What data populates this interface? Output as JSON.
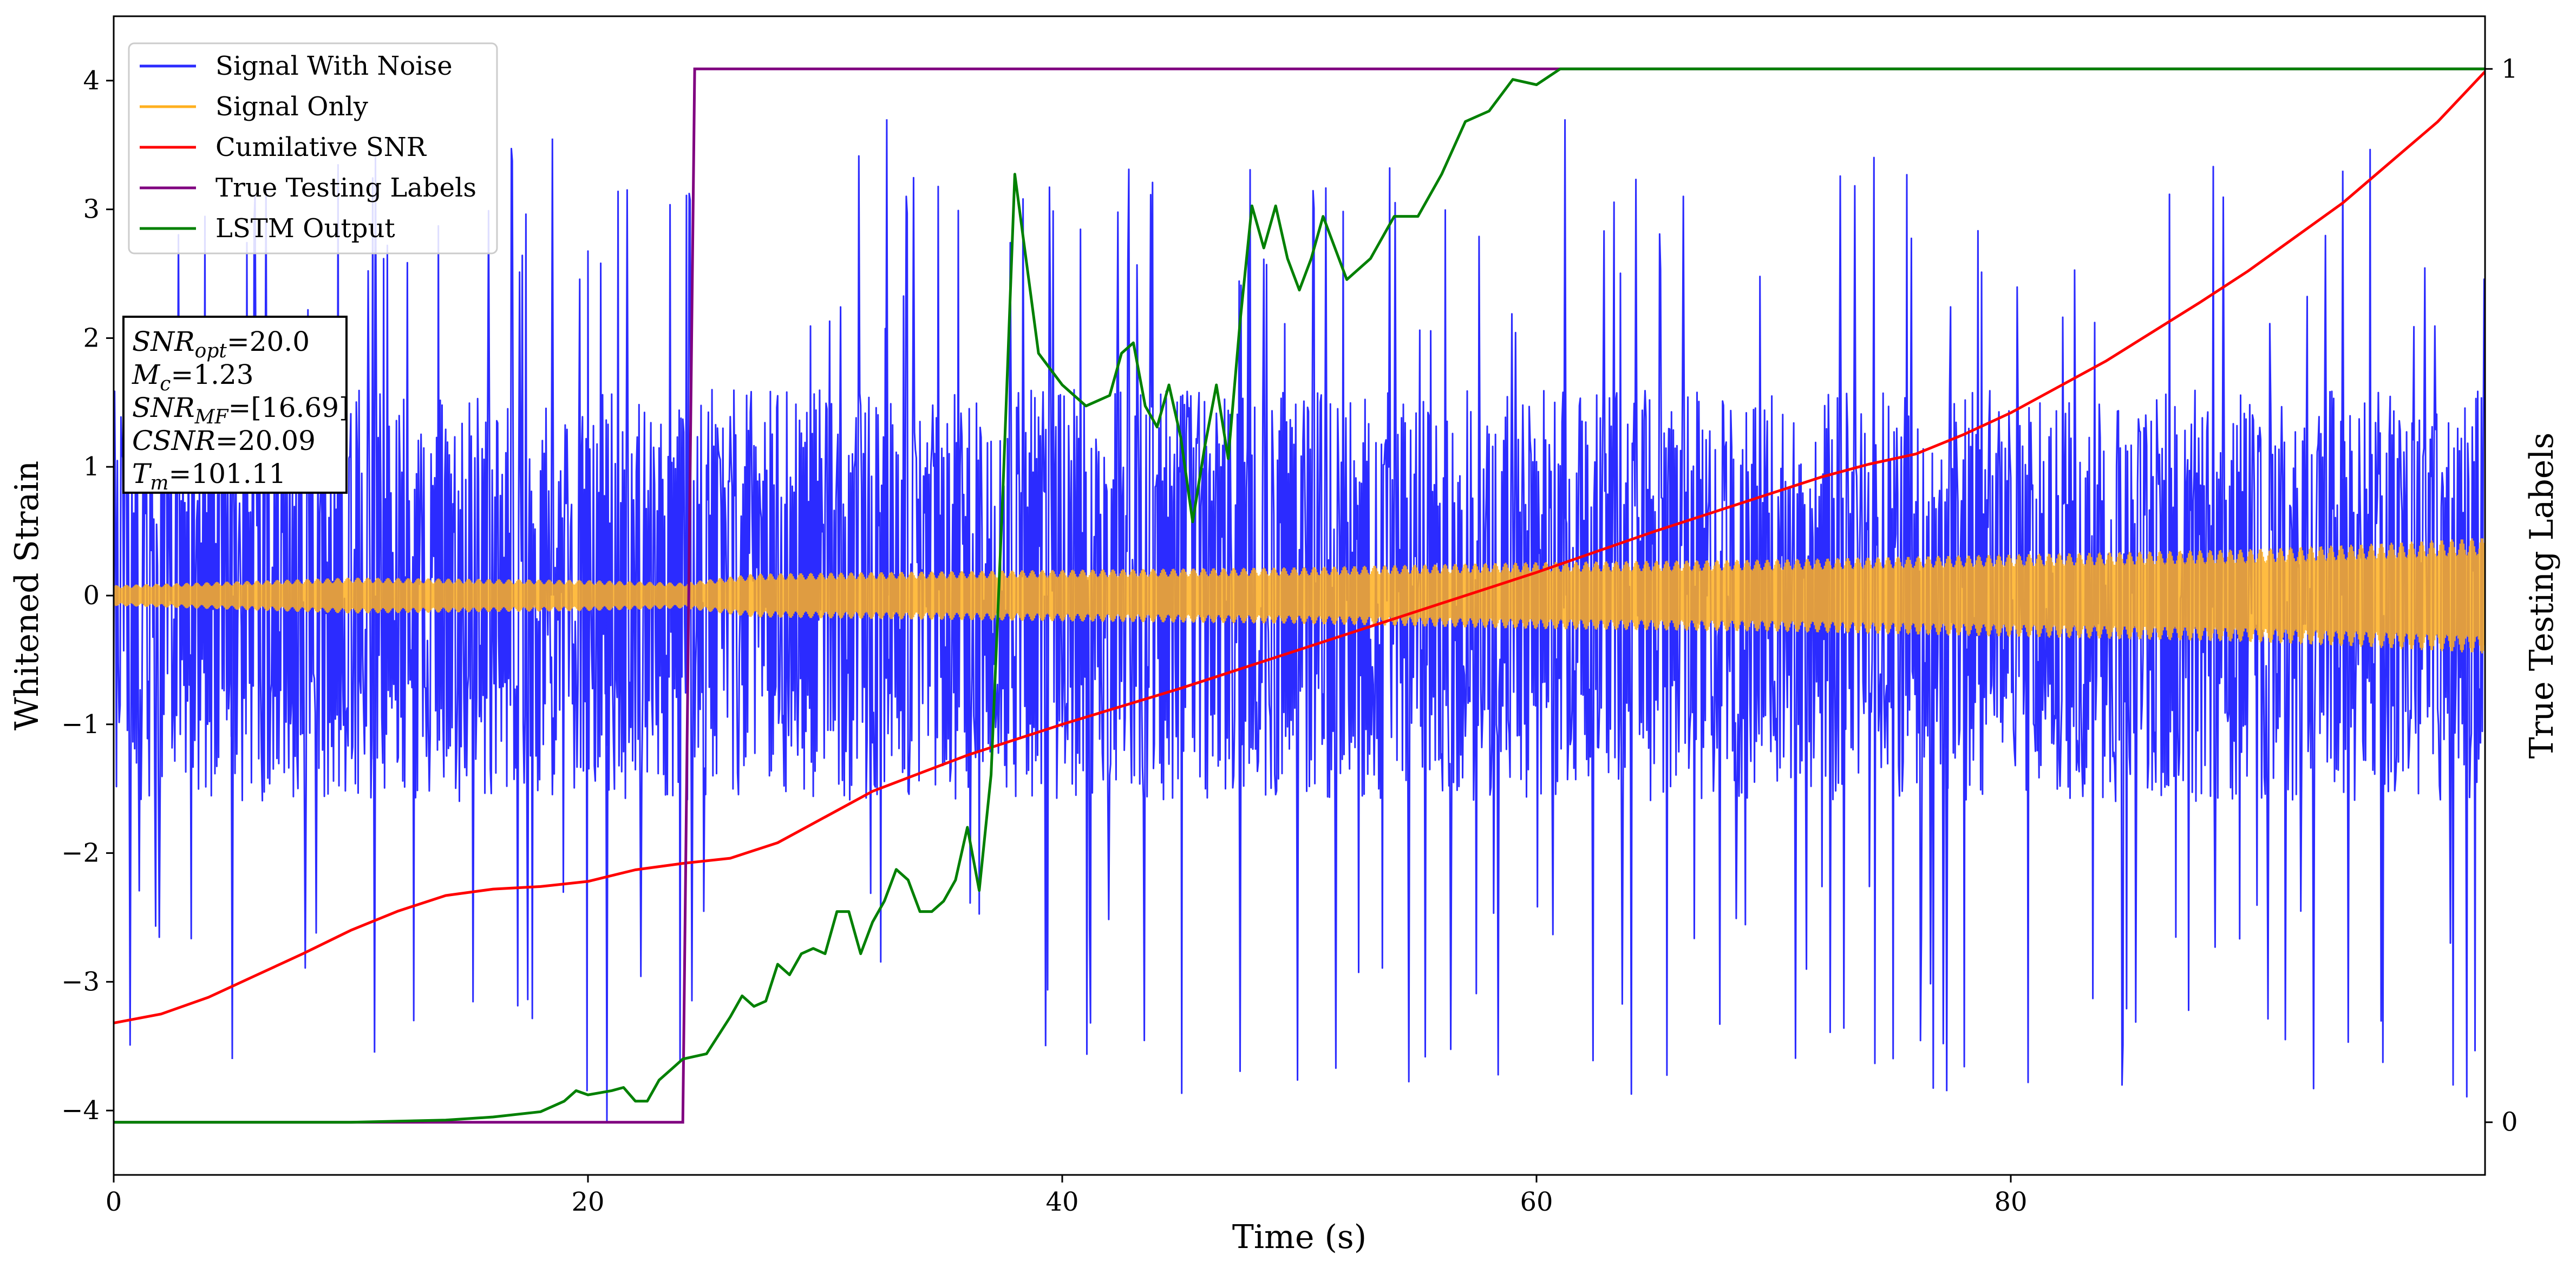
{
  "chart_data": {
    "type": "line",
    "xlabel": "Time (s)",
    "ylabel": "Whitened Strain",
    "ylabel_right": "True Testing Labels",
    "xlim": [
      0,
      100
    ],
    "ylim": [
      -4.5,
      4.5
    ],
    "ylim_right": [
      -0.05,
      1.05
    ],
    "x_ticks": [
      0,
      20,
      40,
      60,
      80
    ],
    "y_ticks": [
      -4,
      -3,
      -2,
      -1,
      0,
      1,
      2,
      3,
      4
    ],
    "y_ticks_right": [
      0,
      1
    ],
    "grid": false,
    "legend_position": "upper-left",
    "series": [
      {
        "name": "Signal With Noise",
        "color": "#2b2bff",
        "axis": "left",
        "kind": "noise",
        "band_low": -1.6,
        "band_high": 1.6,
        "spike_low": -4.1,
        "spike_high": 3.7,
        "peaks": [
          {
            "x": 5.0,
            "y": -3.6
          },
          {
            "x": 11.0,
            "y": -3.55
          },
          {
            "x": 18.5,
            "y": 3.55
          },
          {
            "x": 20.8,
            "y": -4.1
          },
          {
            "x": 32.6,
            "y": 3.7
          },
          {
            "x": 39.3,
            "y": -3.5
          },
          {
            "x": 47.5,
            "y": -3.7
          },
          {
            "x": 61.2,
            "y": 3.7
          },
          {
            "x": 77.3,
            "y": -3.85
          },
          {
            "x": 94.0,
            "y": 3.3
          }
        ]
      },
      {
        "name": "Signal Only",
        "color": "#ffb020",
        "axis": "left",
        "kind": "envelope",
        "x": [
          0,
          10,
          20,
          24,
          27,
          40,
          50,
          55,
          60,
          65,
          70,
          75,
          80,
          85,
          90,
          95,
          100
        ],
        "amplitude": [
          0.08,
          0.14,
          0.12,
          0.1,
          0.17,
          0.2,
          0.22,
          0.24,
          0.26,
          0.27,
          0.28,
          0.3,
          0.32,
          0.34,
          0.36,
          0.4,
          0.45
        ]
      },
      {
        "name": "Cumilative SNR",
        "color": "#ff0000",
        "axis": "left",
        "x": [
          0,
          2,
          4,
          6,
          8,
          10,
          12,
          14,
          16,
          18,
          20,
          22,
          24,
          26,
          28,
          30,
          32,
          34,
          36,
          38,
          40,
          45,
          50,
          55,
          60,
          65,
          70,
          72,
          74,
          76,
          78,
          80,
          84,
          88,
          90,
          94,
          98,
          100
        ],
        "y": [
          -3.32,
          -3.25,
          -3.12,
          -2.95,
          -2.78,
          -2.6,
          -2.45,
          -2.33,
          -2.28,
          -2.26,
          -2.22,
          -2.13,
          -2.08,
          -2.04,
          -1.92,
          -1.72,
          -1.52,
          -1.38,
          -1.24,
          -1.12,
          -1.0,
          -0.72,
          -0.42,
          -0.12,
          0.18,
          0.5,
          0.8,
          0.92,
          1.02,
          1.1,
          1.25,
          1.42,
          1.82,
          2.28,
          2.52,
          3.05,
          3.68,
          4.07
        ]
      },
      {
        "name": "True Testing Labels",
        "color": "#800080",
        "axis": "right",
        "x": [
          0,
          24.0,
          24.5,
          100
        ],
        "y": [
          0,
          0,
          1,
          1
        ]
      },
      {
        "name": "LSTM Output",
        "color": "#008000",
        "axis": "right",
        "x": [
          0,
          10,
          14,
          16,
          18,
          19,
          19.5,
          20,
          20.5,
          21,
          21.5,
          22,
          22.5,
          23,
          23.5,
          24,
          25,
          26,
          26.5,
          27,
          27.5,
          28,
          28.5,
          29,
          29.5,
          30,
          30.5,
          31,
          31.5,
          32,
          32.5,
          33,
          33.5,
          34,
          34.5,
          35,
          35.5,
          36,
          36.5,
          37,
          37.5,
          38,
          39,
          40,
          41,
          42,
          42.5,
          43,
          43.5,
          44,
          44.5,
          45,
          45.5,
          46,
          46.5,
          47,
          47.5,
          48,
          48.5,
          49,
          49.5,
          50,
          50.5,
          51,
          52,
          53,
          54,
          55,
          56,
          57,
          58,
          59,
          60,
          61,
          62,
          65,
          70,
          80,
          90,
          100
        ],
        "y": [
          0,
          0,
          0.002,
          0.005,
          0.01,
          0.02,
          0.03,
          0.026,
          0.028,
          0.03,
          0.033,
          0.02,
          0.02,
          0.04,
          0.05,
          0.06,
          0.065,
          0.1,
          0.12,
          0.11,
          0.115,
          0.15,
          0.14,
          0.16,
          0.165,
          0.16,
          0.2,
          0.2,
          0.16,
          0.19,
          0.21,
          0.24,
          0.23,
          0.2,
          0.2,
          0.21,
          0.23,
          0.28,
          0.22,
          0.33,
          0.6,
          0.9,
          0.73,
          0.7,
          0.68,
          0.69,
          0.73,
          0.74,
          0.68,
          0.66,
          0.7,
          0.65,
          0.57,
          0.64,
          0.7,
          0.63,
          0.76,
          0.87,
          0.83,
          0.87,
          0.82,
          0.79,
          0.82,
          0.86,
          0.8,
          0.82,
          0.86,
          0.86,
          0.9,
          0.95,
          0.96,
          0.99,
          0.985,
          1.0,
          1.0,
          1.0,
          1.0,
          1.0,
          1.0,
          1.0
        ]
      }
    ],
    "annotation": {
      "lines": [
        {
          "main": "SNR",
          "sub": "opt",
          "value": "=20.0"
        },
        {
          "main": "M",
          "sub": "c",
          "value": "=1.23"
        },
        {
          "main": "SNR",
          "sub": "MF",
          "value": "=[16.69]"
        },
        {
          "main": "CSNR",
          "sub": "",
          "value": "=20.09"
        },
        {
          "main": "T",
          "sub": "m",
          "value": "=101.11"
        }
      ]
    }
  }
}
